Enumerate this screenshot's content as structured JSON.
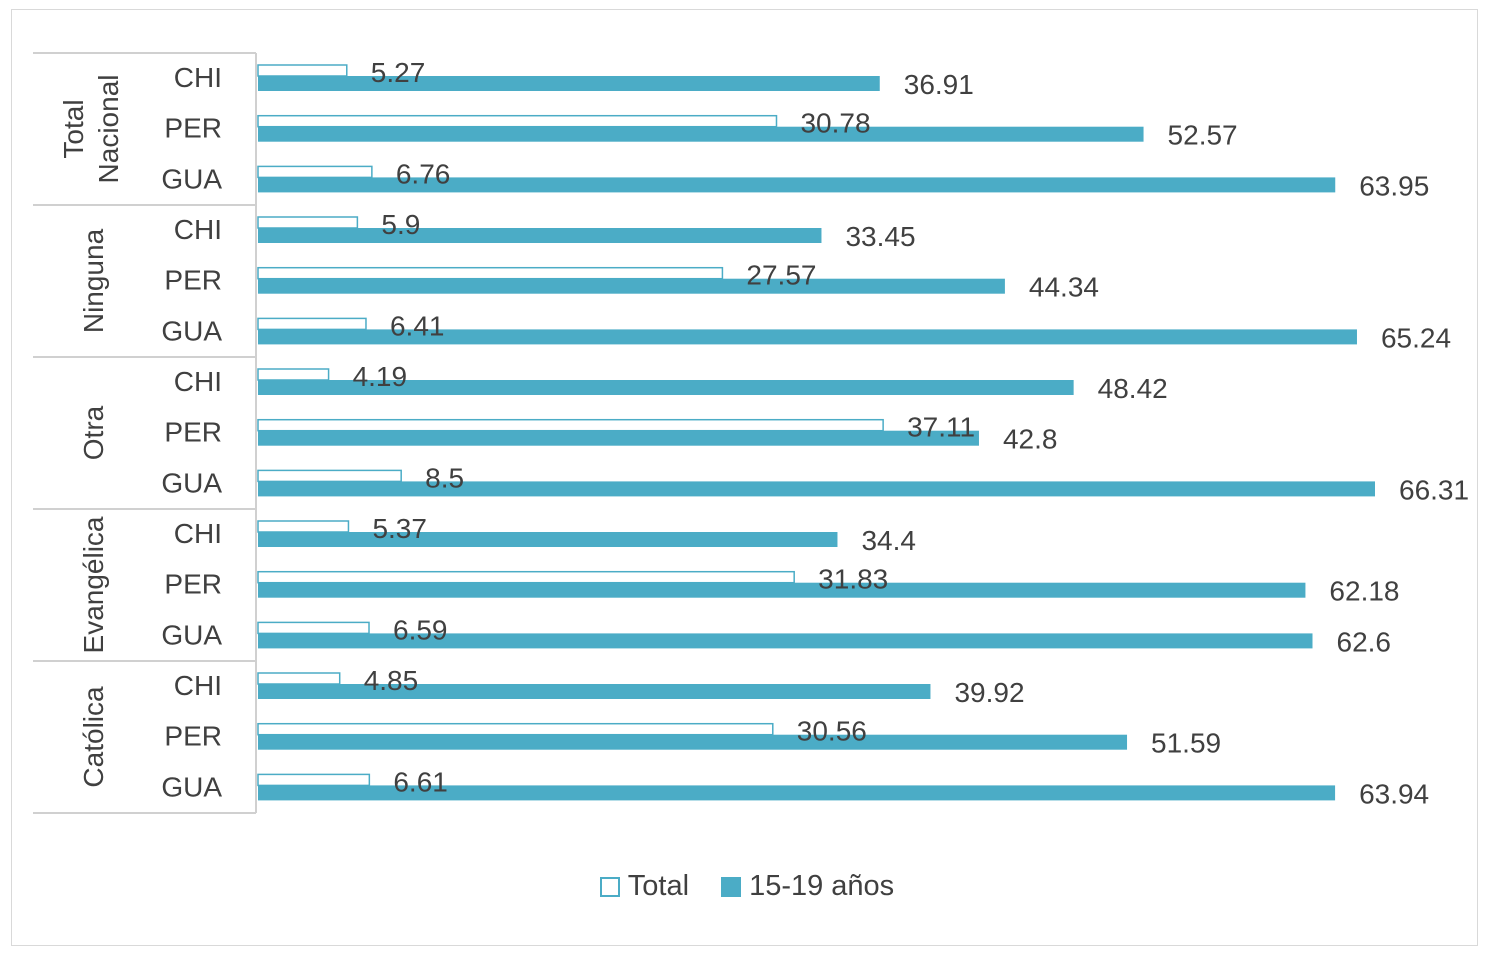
{
  "chart_data": {
    "type": "bar",
    "orientation": "horizontal",
    "groups": [
      {
        "label": "Total Nacional",
        "categories": [
          "CHI",
          "PER",
          "GUA"
        ]
      },
      {
        "label": "Ninguna",
        "categories": [
          "CHI",
          "PER",
          "GUA"
        ]
      },
      {
        "label": "Otra",
        "categories": [
          "CHI",
          "PER",
          "GUA"
        ]
      },
      {
        "label": "Evangélica",
        "categories": [
          "CHI",
          "PER",
          "GUA"
        ]
      },
      {
        "label": "Católica",
        "categories": [
          "CHI",
          "PER",
          "GUA"
        ]
      }
    ],
    "series": [
      {
        "name": "Total",
        "color": "#ffffff",
        "stroke": "#4bacc6",
        "values": [
          5.27,
          30.78,
          6.76,
          5.9,
          27.57,
          6.41,
          4.19,
          37.11,
          8.5,
          5.37,
          31.83,
          6.59,
          4.85,
          30.56,
          6.61
        ]
      },
      {
        "name": "15-19 años",
        "color": "#4bacc6",
        "stroke": "#4bacc6",
        "values": [
          36.91,
          52.57,
          63.95,
          33.45,
          44.34,
          65.24,
          48.42,
          42.8,
          66.31,
          34.4,
          62.18,
          62.6,
          39.92,
          51.59,
          63.94
        ]
      }
    ],
    "xlim": [
      0,
      66.31
    ],
    "grid": false,
    "legend_position": "bottom",
    "data_labels": true
  }
}
